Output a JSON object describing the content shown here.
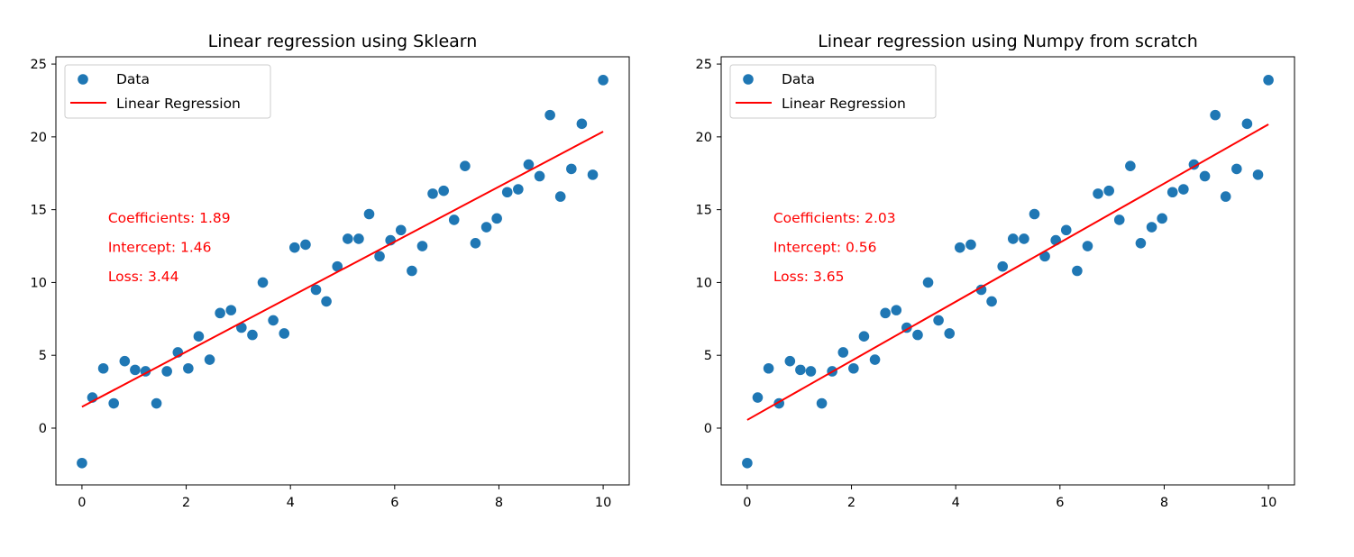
{
  "chart_data": [
    {
      "type": "scatter",
      "title": "Linear regression using Sklearn",
      "xlabel": "",
      "ylabel": "",
      "xlim": [
        -0.5,
        10.5
      ],
      "ylim": [
        -3.9,
        25.5
      ],
      "xticks": [
        0,
        2,
        4,
        6,
        8,
        10
      ],
      "yticks": [
        0,
        5,
        10,
        15,
        20,
        25
      ],
      "grid": false,
      "legend_placement": "upper left",
      "legend": [
        "Data",
        "Linear Regression"
      ],
      "series": [
        {
          "name": "Data",
          "type": "scatter",
          "color": "#1f77b4",
          "points": [
            [
              0.0,
              -2.4
            ],
            [
              0.2,
              2.1
            ],
            [
              0.41,
              4.1
            ],
            [
              0.61,
              1.7
            ],
            [
              0.82,
              4.6
            ],
            [
              1.02,
              4.0
            ],
            [
              1.22,
              3.9
            ],
            [
              1.43,
              1.7
            ],
            [
              1.63,
              3.9
            ],
            [
              1.84,
              5.2
            ],
            [
              2.04,
              4.1
            ],
            [
              2.24,
              6.3
            ],
            [
              2.45,
              4.7
            ],
            [
              2.65,
              7.9
            ],
            [
              2.86,
              8.1
            ],
            [
              3.06,
              6.9
            ],
            [
              3.27,
              6.4
            ],
            [
              3.47,
              10.0
            ],
            [
              3.67,
              7.4
            ],
            [
              3.88,
              6.5
            ],
            [
              4.08,
              12.4
            ],
            [
              4.29,
              12.6
            ],
            [
              4.49,
              9.5
            ],
            [
              4.69,
              8.7
            ],
            [
              4.9,
              11.1
            ],
            [
              5.1,
              13.0
            ],
            [
              5.31,
              13.0
            ],
            [
              5.51,
              14.7
            ],
            [
              5.71,
              11.8
            ],
            [
              5.92,
              12.9
            ],
            [
              6.12,
              13.6
            ],
            [
              6.33,
              10.8
            ],
            [
              6.53,
              12.5
            ],
            [
              6.73,
              16.1
            ],
            [
              6.94,
              16.3
            ],
            [
              7.14,
              14.3
            ],
            [
              7.35,
              18.0
            ],
            [
              7.55,
              12.7
            ],
            [
              7.76,
              13.8
            ],
            [
              7.96,
              14.4
            ],
            [
              8.16,
              16.2
            ],
            [
              8.37,
              16.4
            ],
            [
              8.57,
              18.1
            ],
            [
              8.78,
              17.3
            ],
            [
              8.98,
              21.5
            ],
            [
              9.18,
              15.9
            ],
            [
              9.39,
              17.8
            ],
            [
              9.59,
              20.9
            ],
            [
              9.8,
              17.4
            ],
            [
              10.0,
              23.9
            ]
          ]
        },
        {
          "name": "Linear Regression",
          "type": "line",
          "color": "#ff0000",
          "slope": 1.89,
          "intercept": 1.46,
          "x_range": [
            0,
            10
          ]
        }
      ],
      "annotations": [
        {
          "text": "Coefficients: 1.89",
          "x": 0.5,
          "y": 14.1
        },
        {
          "text": "Intercept: 1.46",
          "x": 0.5,
          "y": 12.1
        },
        {
          "text": "Loss: 3.44",
          "x": 0.5,
          "y": 10.1
        }
      ]
    },
    {
      "type": "scatter",
      "title": "Linear regression using Numpy from scratch",
      "xlabel": "",
      "ylabel": "",
      "xlim": [
        -0.5,
        10.5
      ],
      "ylim": [
        -3.9,
        25.5
      ],
      "xticks": [
        0,
        2,
        4,
        6,
        8,
        10
      ],
      "yticks": [
        0,
        5,
        10,
        15,
        20,
        25
      ],
      "grid": false,
      "legend_placement": "upper left",
      "legend": [
        "Data",
        "Linear Regression"
      ],
      "series": [
        {
          "name": "Data",
          "type": "scatter",
          "color": "#1f77b4",
          "points": [
            [
              0.0,
              -2.4
            ],
            [
              0.2,
              2.1
            ],
            [
              0.41,
              4.1
            ],
            [
              0.61,
              1.7
            ],
            [
              0.82,
              4.6
            ],
            [
              1.02,
              4.0
            ],
            [
              1.22,
              3.9
            ],
            [
              1.43,
              1.7
            ],
            [
              1.63,
              3.9
            ],
            [
              1.84,
              5.2
            ],
            [
              2.04,
              4.1
            ],
            [
              2.24,
              6.3
            ],
            [
              2.45,
              4.7
            ],
            [
              2.65,
              7.9
            ],
            [
              2.86,
              8.1
            ],
            [
              3.06,
              6.9
            ],
            [
              3.27,
              6.4
            ],
            [
              3.47,
              10.0
            ],
            [
              3.67,
              7.4
            ],
            [
              3.88,
              6.5
            ],
            [
              4.08,
              12.4
            ],
            [
              4.29,
              12.6
            ],
            [
              4.49,
              9.5
            ],
            [
              4.69,
              8.7
            ],
            [
              4.9,
              11.1
            ],
            [
              5.1,
              13.0
            ],
            [
              5.31,
              13.0
            ],
            [
              5.51,
              14.7
            ],
            [
              5.71,
              11.8
            ],
            [
              5.92,
              12.9
            ],
            [
              6.12,
              13.6
            ],
            [
              6.33,
              10.8
            ],
            [
              6.53,
              12.5
            ],
            [
              6.73,
              16.1
            ],
            [
              6.94,
              16.3
            ],
            [
              7.14,
              14.3
            ],
            [
              7.35,
              18.0
            ],
            [
              7.55,
              12.7
            ],
            [
              7.76,
              13.8
            ],
            [
              7.96,
              14.4
            ],
            [
              8.16,
              16.2
            ],
            [
              8.37,
              16.4
            ],
            [
              8.57,
              18.1
            ],
            [
              8.78,
              17.3
            ],
            [
              8.98,
              21.5
            ],
            [
              9.18,
              15.9
            ],
            [
              9.39,
              17.8
            ],
            [
              9.59,
              20.9
            ],
            [
              9.8,
              17.4
            ],
            [
              10.0,
              23.9
            ]
          ]
        },
        {
          "name": "Linear Regression",
          "type": "line",
          "color": "#ff0000",
          "slope": 2.03,
          "intercept": 0.56,
          "x_range": [
            0,
            10
          ]
        }
      ],
      "annotations": [
        {
          "text": "Coefficients: 2.03",
          "x": 0.5,
          "y": 14.1
        },
        {
          "text": "Intercept: 0.56",
          "x": 0.5,
          "y": 12.1
        },
        {
          "text": "Loss: 3.65",
          "x": 0.5,
          "y": 10.1
        }
      ]
    }
  ]
}
